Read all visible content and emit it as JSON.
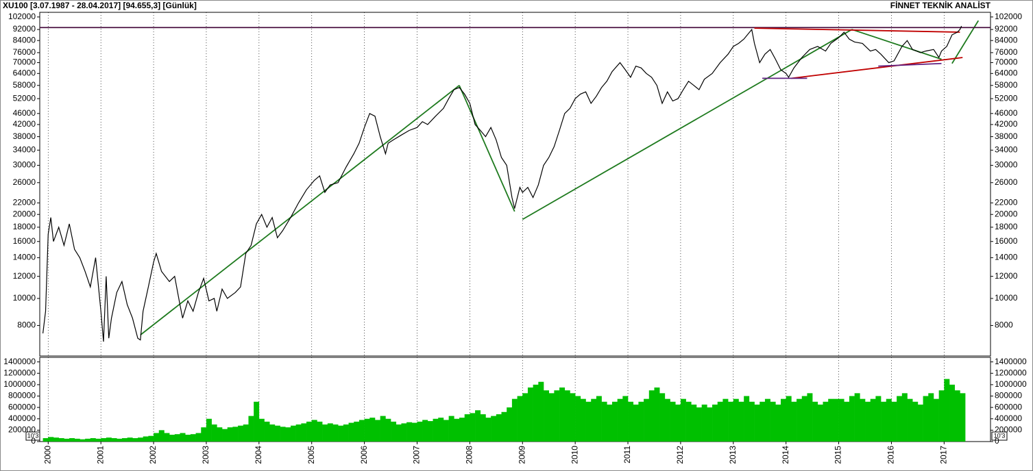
{
  "chart_data": {
    "type": "line",
    "title": "XU100  [3.07.1987 - 28.04.2017]  [94.655,3]  [Günlük]",
    "subtitle": "FİNNET TEKNİK ANALİST",
    "log_scale": true,
    "xlim": [
      1999.84,
      2017.88
    ],
    "xticks": [
      2000,
      2001,
      2002,
      2003,
      2004,
      2005,
      2006,
      2007,
      2008,
      2009,
      2010,
      2011,
      2012,
      2013,
      2014,
      2015,
      2016,
      2017
    ],
    "ylim": [
      6220,
      106000
    ],
    "yticks": [
      8000,
      10000,
      12000,
      14000,
      16000,
      18000,
      20000,
      22000,
      26000,
      30000,
      34000,
      38000,
      42000,
      46000,
      52000,
      58000,
      64000,
      70000,
      76000,
      84000,
      92000,
      102000
    ],
    "series": [
      {
        "name": "XU100",
        "color": "#000000",
        "x": [
          1999.9,
          1999.95,
          2000.0,
          2000.05,
          2000.1,
          2000.2,
          2000.3,
          2000.4,
          2000.5,
          2000.6,
          2000.7,
          2000.8,
          2000.9,
          2001.0,
          2001.05,
          2001.1,
          2001.15,
          2001.2,
          2001.3,
          2001.4,
          2001.5,
          2001.6,
          2001.7,
          2001.75,
          2001.8,
          2001.9,
          2002.0,
          2002.05,
          2002.15,
          2002.3,
          2002.4,
          2002.5,
          2002.55,
          2002.65,
          2002.75,
          2002.85,
          2002.95,
          2003.05,
          2003.15,
          2003.2,
          2003.3,
          2003.4,
          2003.55,
          2003.65,
          2003.75,
          2003.85,
          2003.95,
          2004.05,
          2004.15,
          2004.25,
          2004.35,
          2004.45,
          2004.6,
          2004.75,
          2004.9,
          2005.05,
          2005.15,
          2005.25,
          2005.35,
          2005.5,
          2005.65,
          2005.8,
          2005.9,
          2006.0,
          2006.1,
          2006.2,
          2006.3,
          2006.4,
          2006.45,
          2006.55,
          2006.7,
          2006.85,
          2007.0,
          2007.1,
          2007.2,
          2007.35,
          2007.5,
          2007.6,
          2007.7,
          2007.8,
          2007.9,
          2008.0,
          2008.1,
          2008.2,
          2008.3,
          2008.4,
          2008.5,
          2008.6,
          2008.7,
          2008.8,
          2008.85,
          2008.95,
          2009.0,
          2009.1,
          2009.2,
          2009.3,
          2009.4,
          2009.5,
          2009.6,
          2009.7,
          2009.8,
          2009.9,
          2010.0,
          2010.1,
          2010.2,
          2010.3,
          2010.4,
          2010.5,
          2010.6,
          2010.7,
          2010.85,
          2010.95,
          2011.05,
          2011.15,
          2011.25,
          2011.35,
          2011.45,
          2011.55,
          2011.65,
          2011.75,
          2011.85,
          2011.95,
          2012.05,
          2012.15,
          2012.25,
          2012.35,
          2012.45,
          2012.6,
          2012.75,
          2012.9,
          2013.0,
          2013.1,
          2013.2,
          2013.35,
          2013.4,
          2013.5,
          2013.6,
          2013.7,
          2013.8,
          2013.9,
          2014.0,
          2014.05,
          2014.15,
          2014.3,
          2014.45,
          2014.6,
          2014.75,
          2014.85,
          2015.0,
          2015.1,
          2015.2,
          2015.3,
          2015.45,
          2015.6,
          2015.7,
          2015.8,
          2015.95,
          2016.05,
          2016.2,
          2016.3,
          2016.4,
          2016.55,
          2016.65,
          2016.8,
          2016.9,
          2016.95,
          2017.05,
          2017.15,
          2017.25,
          2017.3,
          2017.33
        ],
        "values": [
          7500,
          9000,
          17000,
          19500,
          16000,
          18000,
          15500,
          18500,
          15000,
          14000,
          12500,
          11000,
          14000,
          9000,
          7000,
          12000,
          7200,
          8500,
          10500,
          11500,
          9500,
          8500,
          7200,
          7100,
          9000,
          11000,
          13500,
          14500,
          12500,
          11500,
          12000,
          9500,
          8500,
          9800,
          9000,
          10500,
          11800,
          9800,
          10000,
          9000,
          10800,
          10000,
          10500,
          11000,
          14500,
          15500,
          18500,
          20000,
          18000,
          19500,
          16500,
          17500,
          19500,
          22000,
          24500,
          26500,
          27500,
          24000,
          25500,
          26000,
          29500,
          33000,
          36000,
          41000,
          46000,
          45000,
          38000,
          33000,
          36000,
          37000,
          38500,
          40000,
          41000,
          43000,
          42000,
          45000,
          48000,
          52000,
          56000,
          57000,
          54000,
          50000,
          42000,
          40000,
          38000,
          41000,
          37000,
          32000,
          30000,
          23000,
          21000,
          25000,
          24000,
          25000,
          23000,
          25500,
          30000,
          32000,
          35000,
          40000,
          46000,
          48000,
          52000,
          54000,
          55000,
          50000,
          53000,
          57000,
          60000,
          65000,
          70000,
          66000,
          62000,
          68000,
          67000,
          64000,
          62000,
          58000,
          50000,
          55000,
          51000,
          52000,
          56000,
          60000,
          58000,
          56000,
          61000,
          64000,
          70000,
          75000,
          80000,
          82000,
          85000,
          92000,
          82000,
          70000,
          75000,
          78000,
          72000,
          66000,
          64000,
          62000,
          67000,
          73000,
          78000,
          80000,
          77000,
          82000,
          86000,
          90000,
          85000,
          83000,
          82000,
          77000,
          78000,
          75000,
          70000,
          71000,
          80000,
          84000,
          78000,
          76000,
          77000,
          78000,
          73000,
          77000,
          80000,
          88000,
          90000,
          92000,
          94655
        ]
      }
    ],
    "trendlines": [
      {
        "color": "#1e7a1e",
        "x": [
          2001.75,
          2007.8
        ],
        "values": [
          7400,
          58000
        ]
      },
      {
        "color": "#1e7a1e",
        "x": [
          2007.8,
          2008.85
        ],
        "values": [
          58000,
          20500
        ]
      },
      {
        "color": "#1e7a1e",
        "x": [
          2009.0,
          2015.25
        ],
        "values": [
          19200,
          92000
        ]
      },
      {
        "color": "#1e7a1e",
        "x": [
          2015.25,
          2016.95
        ],
        "values": [
          92000,
          72000
        ]
      },
      {
        "color": "#1e7a1e",
        "x": [
          2017.15,
          2017.65
        ],
        "values": [
          69500,
          99000
        ]
      },
      {
        "color": "#4a1040",
        "x": [
          1999.84,
          2017.88
        ],
        "values": [
          93500,
          93500
        ]
      },
      {
        "color": "#c00000",
        "x": [
          2013.4,
          2017.3
        ],
        "values": [
          93000,
          90000
        ]
      },
      {
        "color": "#c00000",
        "x": [
          2014.1,
          2017.35
        ],
        "values": [
          61500,
          73000
        ]
      },
      {
        "color": "#602080",
        "x": [
          2013.55,
          2014.4
        ],
        "values": [
          61500,
          61500
        ]
      },
      {
        "color": "#602080",
        "x": [
          2015.75,
          2016.95
        ],
        "values": [
          68000,
          69500
        ]
      }
    ],
    "volume": {
      "type": "bar",
      "color": "#00c000",
      "unit_label": "10'3",
      "ylim": [
        0,
        1480000
      ],
      "yticks": [
        0,
        200000,
        400000,
        600000,
        800000,
        1000000,
        1200000,
        1400000
      ],
      "x": [
        1999.9,
        2000.0,
        2000.1,
        2000.2,
        2000.3,
        2000.4,
        2000.5,
        2000.6,
        2000.7,
        2000.8,
        2000.9,
        2001.0,
        2001.1,
        2001.2,
        2001.3,
        2001.4,
        2001.5,
        2001.6,
        2001.7,
        2001.8,
        2001.9,
        2002.0,
        2002.1,
        2002.2,
        2002.3,
        2002.4,
        2002.5,
        2002.6,
        2002.7,
        2002.8,
        2002.9,
        2003.0,
        2003.1,
        2003.2,
        2003.3,
        2003.4,
        2003.5,
        2003.6,
        2003.7,
        2003.8,
        2003.9,
        2004.0,
        2004.1,
        2004.2,
        2004.3,
        2004.4,
        2004.5,
        2004.6,
        2004.7,
        2004.8,
        2004.9,
        2005.0,
        2005.1,
        2005.2,
        2005.3,
        2005.4,
        2005.5,
        2005.6,
        2005.7,
        2005.8,
        2005.9,
        2006.0,
        2006.1,
        2006.2,
        2006.3,
        2006.4,
        2006.5,
        2006.6,
        2006.7,
        2006.8,
        2006.9,
        2007.0,
        2007.1,
        2007.2,
        2007.3,
        2007.4,
        2007.5,
        2007.6,
        2007.7,
        2007.8,
        2007.9,
        2008.0,
        2008.1,
        2008.2,
        2008.3,
        2008.4,
        2008.5,
        2008.6,
        2008.7,
        2008.8,
        2008.9,
        2009.0,
        2009.1,
        2009.2,
        2009.3,
        2009.4,
        2009.5,
        2009.6,
        2009.7,
        2009.8,
        2009.9,
        2010.0,
        2010.1,
        2010.2,
        2010.3,
        2010.4,
        2010.5,
        2010.6,
        2010.7,
        2010.8,
        2010.9,
        2011.0,
        2011.1,
        2011.2,
        2011.3,
        2011.4,
        2011.5,
        2011.6,
        2011.7,
        2011.8,
        2011.9,
        2012.0,
        2012.1,
        2012.2,
        2012.3,
        2012.4,
        2012.5,
        2012.6,
        2012.7,
        2012.8,
        2012.9,
        2013.0,
        2013.1,
        2013.2,
        2013.3,
        2013.4,
        2013.5,
        2013.6,
        2013.7,
        2013.8,
        2013.9,
        2014.0,
        2014.1,
        2014.2,
        2014.3,
        2014.4,
        2014.5,
        2014.6,
        2014.7,
        2014.8,
        2014.9,
        2015.0,
        2015.1,
        2015.2,
        2015.3,
        2015.4,
        2015.5,
        2015.6,
        2015.7,
        2015.8,
        2015.9,
        2016.0,
        2016.1,
        2016.2,
        2016.3,
        2016.4,
        2016.5,
        2016.6,
        2016.7,
        2016.8,
        2016.9,
        2017.0,
        2017.1,
        2017.2,
        2017.3
      ],
      "values": [
        60000,
        80000,
        70000,
        60000,
        50000,
        60000,
        50000,
        40000,
        50000,
        60000,
        50000,
        60000,
        70000,
        60000,
        50000,
        60000,
        70000,
        60000,
        70000,
        90000,
        100000,
        150000,
        200000,
        150000,
        120000,
        130000,
        150000,
        120000,
        130000,
        150000,
        250000,
        400000,
        300000,
        250000,
        220000,
        250000,
        260000,
        280000,
        300000,
        450000,
        700000,
        400000,
        350000,
        300000,
        280000,
        260000,
        250000,
        280000,
        300000,
        320000,
        350000,
        380000,
        350000,
        300000,
        320000,
        300000,
        280000,
        300000,
        330000,
        350000,
        380000,
        400000,
        420000,
        380000,
        450000,
        400000,
        350000,
        300000,
        320000,
        340000,
        330000,
        350000,
        380000,
        360000,
        400000,
        420000,
        380000,
        450000,
        400000,
        420000,
        480000,
        500000,
        550000,
        480000,
        420000,
        450000,
        480000,
        520000,
        600000,
        750000,
        800000,
        850000,
        950000,
        1000000,
        1050000,
        900000,
        850000,
        900000,
        950000,
        900000,
        850000,
        800000,
        750000,
        700000,
        750000,
        800000,
        700000,
        650000,
        700000,
        750000,
        800000,
        700000,
        650000,
        700000,
        750000,
        900000,
        950000,
        850000,
        750000,
        700000,
        650000,
        750000,
        700000,
        650000,
        600000,
        650000,
        600000,
        650000,
        700000,
        750000,
        700000,
        750000,
        700000,
        800000,
        700000,
        650000,
        700000,
        750000,
        700000,
        650000,
        750000,
        800000,
        700000,
        750000,
        800000,
        850000,
        700000,
        650000,
        700000,
        750000,
        750000,
        750000,
        700000,
        800000,
        850000,
        750000,
        700000,
        750000,
        800000,
        700000,
        750000,
        700000,
        800000,
        850000,
        750000,
        700000,
        650000,
        800000,
        850000,
        750000,
        900000,
        1100000,
        1000000,
        900000,
        850000
      ]
    }
  }
}
